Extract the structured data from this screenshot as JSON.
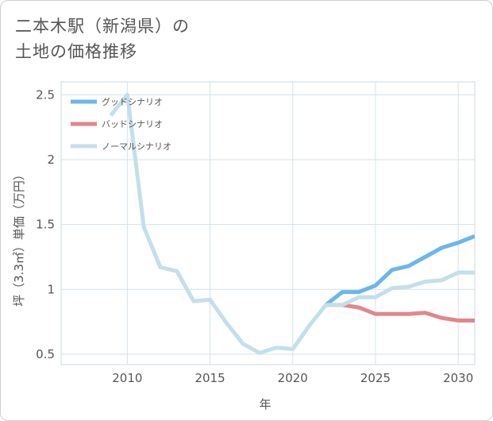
{
  "title": {
    "line1": "二本木駅（新潟県）の",
    "line2": "土地の価格推移"
  },
  "chart_data": {
    "type": "line",
    "xlabel": "年",
    "ylabel": "坪（3.3㎡）単価（万円）",
    "xlim": [
      2006,
      2031
    ],
    "ylim": [
      0.42,
      2.6
    ],
    "xticks": [
      2010,
      2015,
      2020,
      2025,
      2030
    ],
    "xtick_labels": [
      "2010",
      "2015",
      "2020",
      "2025",
      "2030"
    ],
    "yticks": [
      0.5,
      1,
      1.5,
      2,
      2.5
    ],
    "ytick_labels": [
      "0.5",
      "1",
      "1.5",
      "2",
      "2.5"
    ],
    "grid": true,
    "legend": "top-left",
    "series": [
      {
        "name": "グッドシナリオ",
        "color": "#6bb6ea",
        "x": [
          2022,
          2023,
          2024,
          2025,
          2026,
          2027,
          2028,
          2029,
          2030,
          2031
        ],
        "y": [
          0.88,
          0.98,
          0.98,
          1.03,
          1.15,
          1.18,
          1.25,
          1.32,
          1.36,
          1.41
        ]
      },
      {
        "name": "バッドシナリオ",
        "color": "#e0878e",
        "x": [
          2022,
          2023,
          2024,
          2025,
          2026,
          2027,
          2028,
          2029,
          2030,
          2031
        ],
        "y": [
          0.88,
          0.88,
          0.86,
          0.81,
          0.81,
          0.81,
          0.82,
          0.78,
          0.76,
          0.76
        ]
      },
      {
        "name": "ノーマルシナリオ",
        "color": "#c3dfec",
        "x": [
          2009,
          2010,
          2011,
          2012,
          2013,
          2014,
          2015,
          2016,
          2017,
          2018,
          2019,
          2020,
          2021,
          2022,
          2023,
          2024,
          2025,
          2026,
          2027,
          2028,
          2029,
          2030,
          2031
        ],
        "y": [
          2.34,
          2.5,
          1.48,
          1.17,
          1.14,
          0.91,
          0.92,
          0.74,
          0.58,
          0.51,
          0.55,
          0.54,
          0.72,
          0.88,
          0.88,
          0.94,
          0.94,
          1.01,
          1.02,
          1.06,
          1.07,
          1.13,
          1.13
        ]
      }
    ]
  }
}
